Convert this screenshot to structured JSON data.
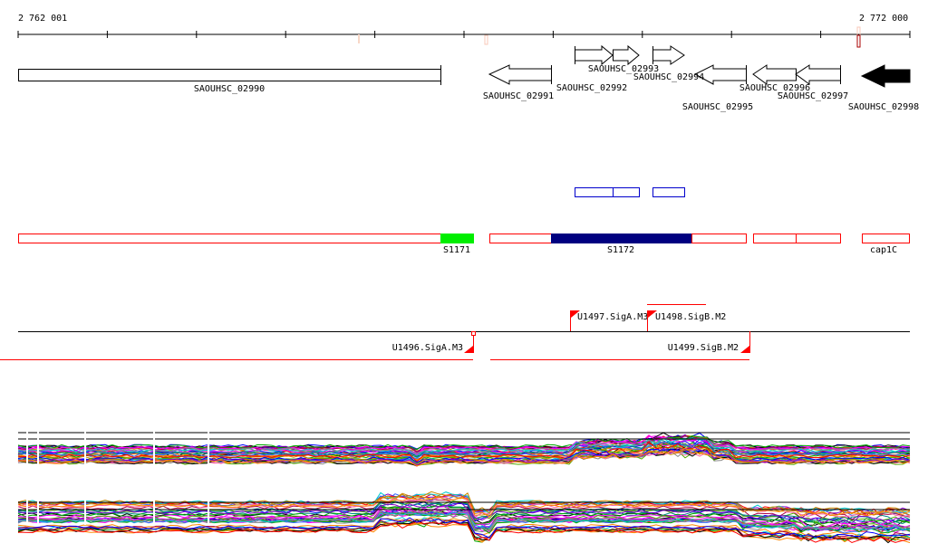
{
  "ruler": {
    "start_label": "2 762 001",
    "end_label": "2 772 000"
  },
  "genes": [
    {
      "name": "SAOUHSC_02990"
    },
    {
      "name": "SAOUHSC_02991"
    },
    {
      "name": "SAOUHSC_02992"
    },
    {
      "name": "SAOUHSC_02993"
    },
    {
      "name": "SAOUHSC_02994"
    },
    {
      "name": "SAOUHSC_02995"
    },
    {
      "name": "SAOUHSC_02996"
    },
    {
      "name": "SAOUHSC_02997"
    },
    {
      "name": "SAOUHSC_02998"
    }
  ],
  "features": {
    "s1171": "S1171",
    "s1172": "S1172",
    "cap1c": "cap1C"
  },
  "promoters": {
    "u1496": "U1496.SigA.M3",
    "u1497": "U1497.SigA.M3",
    "u1498": "U1498.SigB.M2",
    "u1499": "U1499.SigB.M2"
  },
  "colors": {
    "feature": "#ff0000",
    "green": "#00ee00",
    "navy": "#000080",
    "blue": "#0000cc",
    "series": [
      "#000000",
      "#ff0000",
      "#00aa00",
      "#0000ff",
      "#ff00ff",
      "#00cccc",
      "#cc8800",
      "#888888",
      "#8800cc",
      "#ff8800",
      "#008888",
      "#aa0044",
      "#55aa00",
      "#ff66aa",
      "#3366ff"
    ]
  }
}
